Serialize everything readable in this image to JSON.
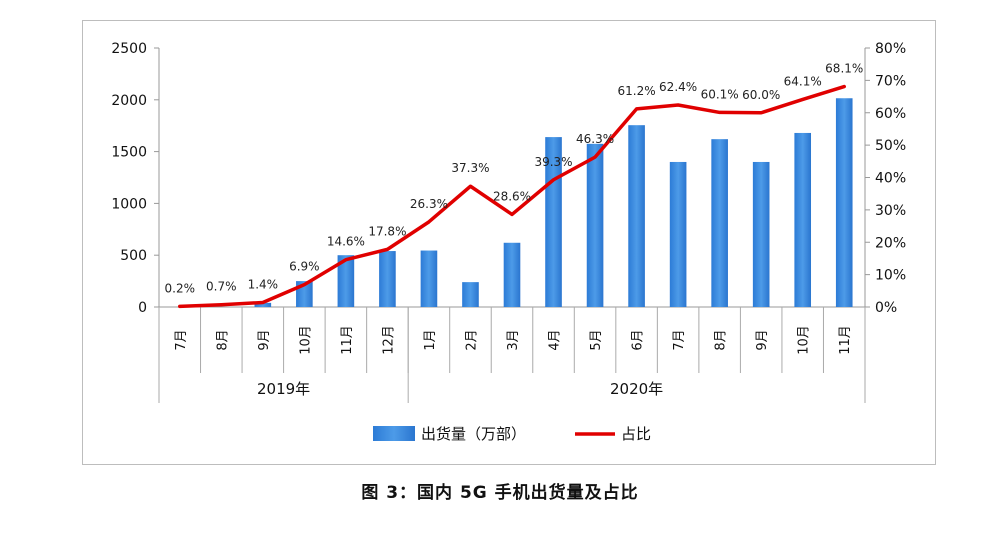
{
  "caption": "图 3：国内 5G 手机出货量及占比",
  "chart_data": {
    "type": "bar+line",
    "title": "",
    "categories": [
      "7月",
      "8月",
      "9月",
      "10月",
      "11月",
      "12月",
      "1月",
      "2月",
      "3月",
      "4月",
      "5月",
      "6月",
      "7月",
      "8月",
      "9月",
      "10月",
      "11月"
    ],
    "year_groups": [
      {
        "label": "2019年",
        "count": 6
      },
      {
        "label": "2020年",
        "count": 11
      }
    ],
    "series": [
      {
        "name": "出货量（万部）",
        "type": "bar",
        "axis": "left",
        "color": "#3b8de0",
        "values": [
          0,
          0,
          40,
          250,
          500,
          540,
          545,
          240,
          620,
          1640,
          1575,
          1755,
          1400,
          1620,
          1400,
          1680,
          2015
        ]
      },
      {
        "name": "占比",
        "type": "line",
        "axis": "right",
        "color": "#e00000",
        "values": [
          0.2,
          0.7,
          1.4,
          6.9,
          14.6,
          17.8,
          26.3,
          37.3,
          28.6,
          39.3,
          46.3,
          61.2,
          62.4,
          60.1,
          60.0,
          64.1,
          68.1
        ],
        "labels": [
          "0.2%",
          "0.7%",
          "1.4%",
          "6.9%",
          "14.6%",
          "17.8%",
          "26.3%",
          "37.3%",
          "28.6%",
          "39.3%",
          "46.3%",
          "61.2%",
          "62.4%",
          "60.1%",
          "60.0%",
          "64.1%",
          "68.1%"
        ]
      }
    ],
    "y_left": {
      "min": 0,
      "max": 2500,
      "ticks": [
        "0",
        "500",
        "1000",
        "1500",
        "2000",
        "2500"
      ]
    },
    "y_right": {
      "min": 0,
      "max": 80,
      "ticks": [
        "0%",
        "10%",
        "20%",
        "30%",
        "40%",
        "50%",
        "60%",
        "70%",
        "80%"
      ]
    },
    "grid": false,
    "legend_position": "bottom"
  }
}
